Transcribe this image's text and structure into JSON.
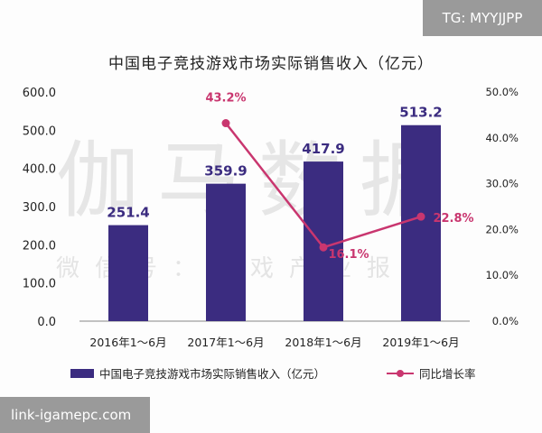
{
  "watermark": {
    "main": "伽马数据",
    "sub": "微信号：游戏产业报告"
  },
  "badges": {
    "top_right": "TG: MYYJJPP",
    "bottom_left": "link-igamepc.com"
  },
  "colors": {
    "bar": "#3b2c80",
    "line": "#c9366f",
    "axis": "#888888"
  },
  "chart_data": {
    "type": "bar",
    "title": "中国电子竞技游戏市场实际销售收入（亿元）",
    "categories": [
      "2016年1～6月",
      "2017年1～6月",
      "2018年1～6月",
      "2019年1～6月"
    ],
    "series": [
      {
        "name": "中国电子竞技游戏市场实际销售收入（亿元）",
        "type": "bar",
        "axis": "left",
        "values": [
          251.4,
          359.9,
          417.9,
          513.2
        ],
        "labels": [
          "251.4",
          "359.9",
          "417.9",
          "513.2"
        ]
      },
      {
        "name": "同比增长率",
        "type": "line",
        "axis": "right",
        "values": [
          null,
          43.2,
          16.1,
          22.8
        ],
        "labels": [
          "",
          "43.2%",
          "16.1%",
          "22.8%"
        ]
      }
    ],
    "y_left": {
      "range": [
        0,
        600
      ],
      "ticks": [
        "0.0",
        "100.0",
        "200.0",
        "300.0",
        "400.0",
        "500.0",
        "600.0"
      ]
    },
    "y_right": {
      "range": [
        0,
        50
      ],
      "ticks": [
        "0.0%",
        "10.0%",
        "20.0%",
        "30.0%",
        "40.0%",
        "50.0%"
      ]
    },
    "grid": false,
    "legend_position": "bottom"
  }
}
